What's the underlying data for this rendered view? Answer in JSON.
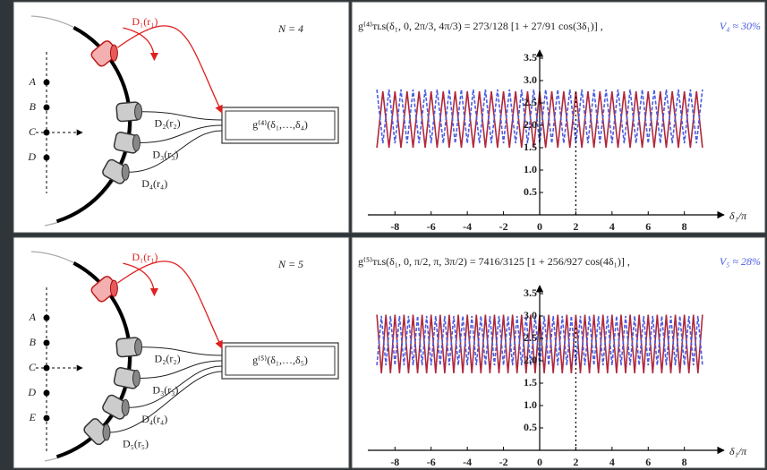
{
  "chart_data": [
    {
      "type": "line",
      "title": "g⁽⁴⁾ᴛʟs(δ₁, 0, 2π/3, 4π/3) = 273/128 [1 + 27/91 cos(3δ₁)] ,",
      "annotation": "V₄ ≈ 30%",
      "xlabel": "δ₁/π",
      "x": [
        -9,
        -8.67,
        -8.33,
        -8,
        -7.67,
        -7.33,
        -7,
        -6.67,
        -6.33,
        -6,
        -5.67,
        -5.33,
        -5,
        -4.67,
        -4.33,
        -4,
        -3.67,
        -3.33,
        -3,
        -2.67,
        -2.33,
        -2,
        -1.67,
        -1.33,
        -1,
        -0.67,
        -0.33,
        0,
        0.33,
        0.67,
        1,
        1.33,
        1.67,
        2,
        2.33,
        2.67,
        3,
        3.33,
        3.67,
        4,
        4.33,
        4.67,
        5,
        5.33,
        5.67,
        6,
        6.33,
        6.67,
        7,
        7.33,
        7.67,
        8,
        8.33,
        8.67,
        9
      ],
      "series": [
        {
          "color": "#b0283a",
          "style": "solid",
          "values": [
            1.5,
            2.76,
            1.5,
            2.76,
            1.5,
            2.76,
            1.5,
            2.76,
            1.5,
            2.76,
            1.5,
            2.76,
            1.5,
            2.76,
            1.5,
            2.76,
            1.5,
            2.76,
            1.5,
            2.76,
            1.5,
            2.76,
            1.5,
            2.76,
            1.5,
            2.76,
            1.5,
            2.76,
            1.5,
            2.76,
            1.5,
            2.76,
            1.5,
            2.76,
            1.5,
            2.76,
            1.5,
            2.76,
            1.5,
            2.76,
            1.5,
            2.76,
            1.5,
            2.76,
            1.5,
            2.76,
            1.5,
            2.76,
            1.5,
            2.76,
            1.5,
            2.76,
            1.5,
            2.76,
            1.5
          ]
        },
        {
          "color": "#4a5ee0",
          "style": "dashed",
          "values": [
            2.8,
            1.6,
            2.8,
            1.6,
            2.8,
            1.6,
            2.8,
            1.6,
            2.8,
            1.6,
            2.8,
            1.6,
            2.8,
            1.6,
            2.8,
            1.6,
            2.8,
            1.6,
            2.8,
            1.6,
            2.8,
            1.6,
            2.8,
            1.6,
            2.8,
            1.6,
            2.8,
            1.6,
            2.8,
            1.6,
            2.8,
            1.6,
            2.8,
            1.6,
            2.8,
            1.6,
            2.8,
            1.6,
            2.8,
            1.6,
            2.8,
            1.6,
            2.8,
            1.6,
            2.8,
            1.6,
            2.8,
            1.6,
            2.8,
            1.6,
            2.8,
            1.6,
            2.8,
            1.6,
            2.8
          ]
        }
      ],
      "xlim": [
        -9.5,
        9.5
      ],
      "ylim": [
        0,
        3.6
      ],
      "xticks": [
        -8,
        -6,
        -4,
        -2,
        0,
        2,
        4,
        6,
        8
      ],
      "yticks": [
        0.5,
        {
          "value": 1,
          "label": "1.0"
        },
        1.5,
        {
          "value": 2,
          "label": "2.0"
        },
        2.5,
        {
          "value": 3,
          "label": "3.0"
        },
        3.5
      ],
      "vline": 2
    },
    {
      "type": "line",
      "title": "g⁽⁵⁾ᴛʟs(δ₁, 0, π/2, π, 3π/2) = 7416/3125 [1 + 256/927 cos(4δ₁)] ,",
      "annotation": "V₅ ≈ 28%",
      "xlabel": "δ₁/π",
      "x": [
        -9,
        -8.75,
        -8.5,
        -8.25,
        -8,
        -7.75,
        -7.5,
        -7.25,
        -7,
        -6.75,
        -6.5,
        -6.25,
        -6,
        -5.75,
        -5.5,
        -5.25,
        -5,
        -4.75,
        -4.5,
        -4.25,
        -4,
        -3.75,
        -3.5,
        -3.25,
        -3,
        -2.75,
        -2.5,
        -2.25,
        -2,
        -1.75,
        -1.5,
        -1.25,
        -1,
        -0.75,
        -0.5,
        -0.25,
        0,
        0.25,
        0.5,
        0.75,
        1,
        1.25,
        1.5,
        1.75,
        2,
        2.25,
        2.5,
        2.75,
        3,
        3.25,
        3.5,
        3.75,
        4,
        4.25,
        4.5,
        4.75,
        5,
        5.25,
        5.5,
        5.75,
        6,
        6.25,
        6.5,
        6.75,
        7,
        7.25,
        7.5,
        7.75,
        8,
        8.25,
        8.5,
        8.75,
        9
      ],
      "series": [
        {
          "color": "#b0283a",
          "style": "solid",
          "values": [
            3.03,
            1.72,
            3.03,
            1.72,
            3.03,
            1.72,
            3.03,
            1.72,
            3.03,
            1.72,
            3.03,
            1.72,
            3.03,
            1.72,
            3.03,
            1.72,
            3.03,
            1.72,
            3.03,
            1.72,
            3.03,
            1.72,
            3.03,
            1.72,
            3.03,
            1.72,
            3.03,
            1.72,
            3.03,
            1.72,
            3.03,
            1.72,
            3.03,
            1.72,
            3.03,
            1.72,
            3.03,
            1.72,
            3.03,
            1.72,
            3.03,
            1.72,
            3.03,
            1.72,
            3.03,
            1.72,
            3.03,
            1.72,
            3.03,
            1.72,
            3.03,
            1.72,
            3.03,
            1.72,
            3.03,
            1.72,
            3.03,
            1.72,
            3.03,
            1.72,
            3.03,
            1.72,
            3.03,
            1.72,
            3.03,
            1.72,
            3.03,
            1.72,
            3.03,
            1.72,
            3.03,
            1.72,
            3.03
          ]
        },
        {
          "color": "#4a5ee0",
          "style": "dashed",
          "values": [
            1.9,
            3,
            1.9,
            3,
            1.9,
            3,
            1.9,
            3,
            1.9,
            3,
            1.9,
            3,
            1.9,
            3,
            1.9,
            3,
            1.9,
            3,
            1.9,
            3,
            1.9,
            3,
            1.9,
            3,
            1.9,
            3,
            1.9,
            3,
            1.9,
            3,
            1.9,
            3,
            1.9,
            3,
            1.9,
            3,
            1.9,
            3,
            1.9,
            3,
            1.9,
            3,
            1.9,
            3,
            1.9,
            3,
            1.9,
            3,
            1.9,
            3,
            1.9,
            3,
            1.9,
            3,
            1.9,
            3,
            1.9,
            3,
            1.9,
            3,
            1.9,
            3,
            1.9,
            3,
            1.9,
            3,
            1.9,
            3,
            1.9,
            3,
            1.9,
            3,
            1.9
          ]
        }
      ],
      "xlim": [
        -9.5,
        9.5
      ],
      "ylim": [
        0,
        3.6
      ],
      "xticks": [
        -8,
        -6,
        -4,
        -2,
        0,
        2,
        4,
        6,
        8
      ],
      "yticks": [
        0.5,
        {
          "value": 1,
          "label": "1.0"
        },
        1.5,
        {
          "value": 2,
          "label": "2.0"
        },
        2.5,
        {
          "value": 3,
          "label": "3.0"
        },
        3.5
      ],
      "vline": 2
    }
  ],
  "diagrams": [
    {
      "n_label": "N = 4",
      "positions": [
        "A",
        "B",
        "C",
        "D"
      ],
      "detectors": [
        "D₁(r₁)",
        "D₂(r₂)",
        "D₃(r₃)",
        "D₄(r₄)"
      ],
      "box_label": "g⁽⁴⁾(δ₁,…,δ₄)"
    },
    {
      "n_label": "N = 5",
      "positions": [
        "A",
        "B",
        "C",
        "D",
        "E"
      ],
      "detectors": [
        "D₁(r₁)",
        "D₂(r₂)",
        "D₃(r₃)",
        "D₄(r₄)",
        "D₅(r₅)"
      ],
      "box_label": "g⁽⁵⁾(δ₁,…,δ₅)"
    }
  ]
}
